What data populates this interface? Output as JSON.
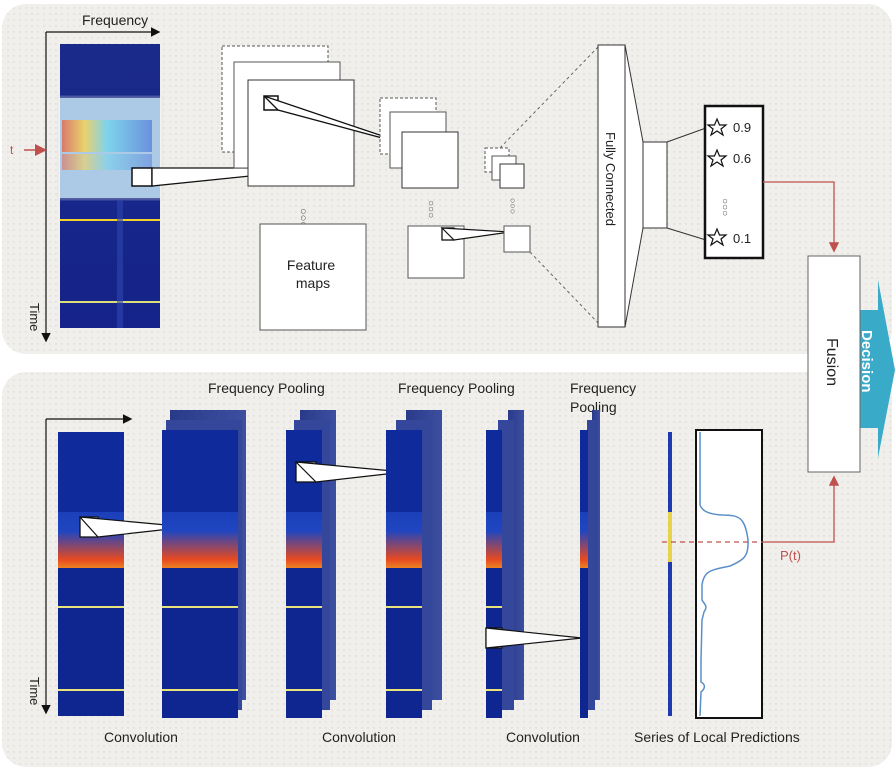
{
  "top_panel": {
    "axis_frequency": "Frequency",
    "axis_time": "Time",
    "marker_t": "t",
    "feature_maps_label": "Feature maps",
    "fully_connected_label": "Fully Connected",
    "predictions": [
      "0.9",
      "0.6",
      "0.1"
    ],
    "ellipsis": "···"
  },
  "bottom_panel": {
    "axis_time": "Time",
    "frequency_pooling_1": "Frequency Pooling",
    "frequency_pooling_2": "Frequency Pooling",
    "frequency_pooling_3a": "Frequency",
    "frequency_pooling_3b": "Pooling",
    "convolution_1": "Convolution",
    "convolution_2": "Convolution",
    "convolution_3": "Convolution",
    "local_predictions_label": "Series of Local Predictions",
    "p_label": "P(t)"
  },
  "fusion_label": "Fusion",
  "decision_label": "Decision",
  "colors": {
    "panel_bg": "#f0efec",
    "spectrogram_bg": "#1a2f9a",
    "decision_arrow": "#3aaac9",
    "red_line": "#c0504d",
    "curve": "#5b8fc9"
  }
}
